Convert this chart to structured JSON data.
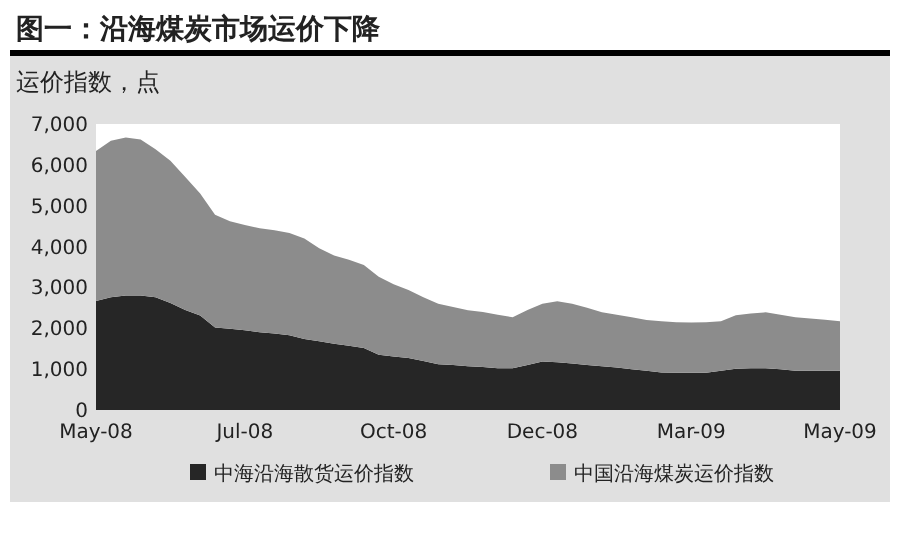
{
  "chart_data": {
    "type": "area",
    "stacked": true,
    "title": "图一：沿海煤炭市场运价下降",
    "ylabel": "运价指数，点",
    "categories": [
      "May-08",
      null,
      null,
      null,
      null,
      null,
      null,
      null,
      null,
      null,
      "Jul-08",
      null,
      null,
      null,
      null,
      null,
      null,
      null,
      null,
      null,
      "Oct-08",
      null,
      null,
      null,
      null,
      null,
      null,
      null,
      null,
      null,
      "Dec-08",
      null,
      null,
      null,
      null,
      null,
      null,
      null,
      null,
      null,
      "Mar-09",
      null,
      null,
      null,
      null,
      null,
      null,
      null,
      null,
      null,
      "May-09"
    ],
    "series": [
      {
        "name": "中海沿海散货运价指数",
        "color": "#262626",
        "values": [
          2670,
          2760,
          2800,
          2800,
          2760,
          2620,
          2450,
          2310,
          2020,
          1990,
          1950,
          1900,
          1870,
          1830,
          1740,
          1680,
          1620,
          1570,
          1520,
          1350,
          1310,
          1270,
          1200,
          1120,
          1100,
          1070,
          1050,
          1020,
          1020,
          1100,
          1190,
          1170,
          1140,
          1100,
          1070,
          1040,
          1000,
          960,
          920,
          910,
          910,
          910,
          960,
          1010,
          1020,
          1020,
          1000,
          960,
          960,
          960,
          960
        ]
      },
      {
        "name": "中国沿海煤炭运价指数",
        "color": "#8c8c8c",
        "values": [
          3670,
          3830,
          3870,
          3820,
          3620,
          3480,
          3250,
          2990,
          2760,
          2630,
          2580,
          2550,
          2530,
          2500,
          2460,
          2280,
          2160,
          2110,
          2030,
          1910,
          1770,
          1670,
          1560,
          1480,
          1420,
          1370,
          1350,
          1310,
          1250,
          1350,
          1410,
          1490,
          1460,
          1400,
          1320,
          1290,
          1270,
          1240,
          1250,
          1240,
          1230,
          1240,
          1210,
          1310,
          1340,
          1370,
          1330,
          1310,
          1280,
          1250,
          1210
        ]
      }
    ],
    "ylim": [
      0,
      7000
    ],
    "yticks": [
      0,
      {
        "value": 1000,
        "label": "1,000"
      },
      {
        "value": 2000,
        "label": "2,000"
      },
      {
        "value": 3000,
        "label": "3,000"
      },
      {
        "value": 4000,
        "label": "4,000"
      },
      {
        "value": 5000,
        "label": "5,000"
      },
      {
        "value": 6000,
        "label": "6,000"
      },
      {
        "value": 7000,
        "label": "7,000"
      }
    ],
    "grid": false,
    "legend": "bottom"
  }
}
